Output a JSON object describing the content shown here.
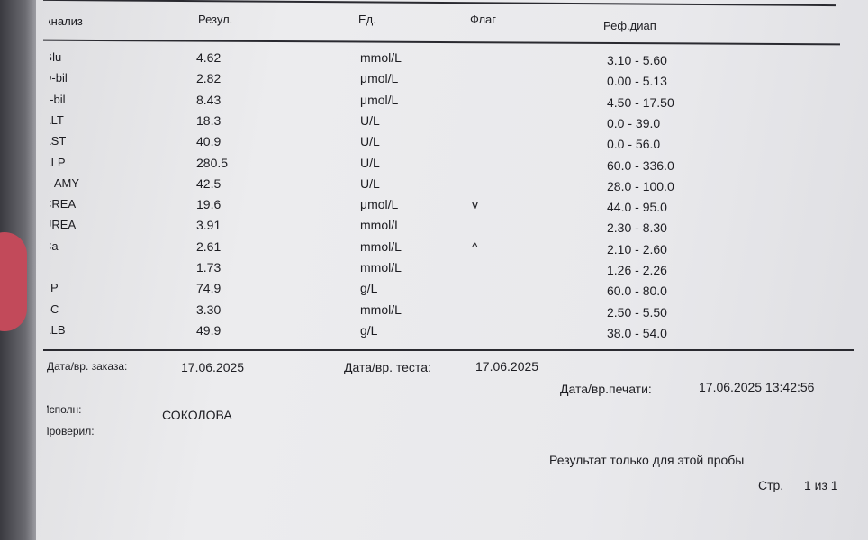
{
  "table": {
    "header": [
      "Анализ",
      "Резул.",
      "Ед.",
      "Флаг",
      "Реф.диап"
    ],
    "rows": [
      {
        "name": "Glu",
        "result": "4.62",
        "unit": "mmol/L",
        "ref": "3.10 - 5.60"
      },
      {
        "name": "D-bil",
        "result": "2.82",
        "unit": "μmol/L",
        "ref": "0.00 - 5.13"
      },
      {
        "name": "T-bil",
        "result": "8.43",
        "unit": "μmol/L",
        "ref": "4.50 - 17.50"
      },
      {
        "name": "ALT",
        "result": "18.3",
        "unit": "U/L",
        "ref": "0.0 - 39.0"
      },
      {
        "name": "AST",
        "result": "40.9",
        "unit": "U/L",
        "ref": "0.0 - 56.0"
      },
      {
        "name": "ALP",
        "result": "280.5",
        "unit": "U/L",
        "ref": "60.0 - 336.0"
      },
      {
        "name": "α-AMY",
        "result": "42.5",
        "unit": "U/L",
        "ref": "28.0 - 100.0"
      },
      {
        "name": "CREA",
        "result": "19.6",
        "unit": "μmol/L",
        "flag": "v",
        "ref": "44.0 - 95.0"
      },
      {
        "name": "UREA",
        "result": "3.91",
        "unit": "mmol/L",
        "ref": "2.30 - 8.30"
      },
      {
        "name": "Ca",
        "result": "2.61",
        "unit": "mmol/L",
        "flag": "^",
        "ref": "2.10 - 2.60"
      },
      {
        "name": "P",
        "result": "1.73",
        "unit": "mmol/L",
        "ref": "1.26 - 2.26"
      },
      {
        "name": "TP",
        "result": "74.9",
        "unit": "g/L",
        "ref": "60.0 - 80.0"
      },
      {
        "name": "TC",
        "result": "3.30",
        "unit": "mmol/L",
        "ref": "2.50 - 5.50"
      },
      {
        "name": "ALB",
        "result": "49.9",
        "unit": "g/L",
        "ref": "38.0 - 54.0"
      }
    ]
  },
  "footer": {
    "order_label": "Дата/вр. заказа:",
    "order_date": "17.06.2025",
    "test_label": "Дата/вр. теста:",
    "test_date": "17.06.2025",
    "print_label": "Дата/вр.печати:",
    "print_date": "17.06.2025 13:42:56",
    "performer_label": "Исполн:",
    "performer": "СОКОЛОВА",
    "checked_label": "Проверил:",
    "note": "Результат только для этой пробы",
    "page_label": "Стр.",
    "page": "1 из 1"
  }
}
